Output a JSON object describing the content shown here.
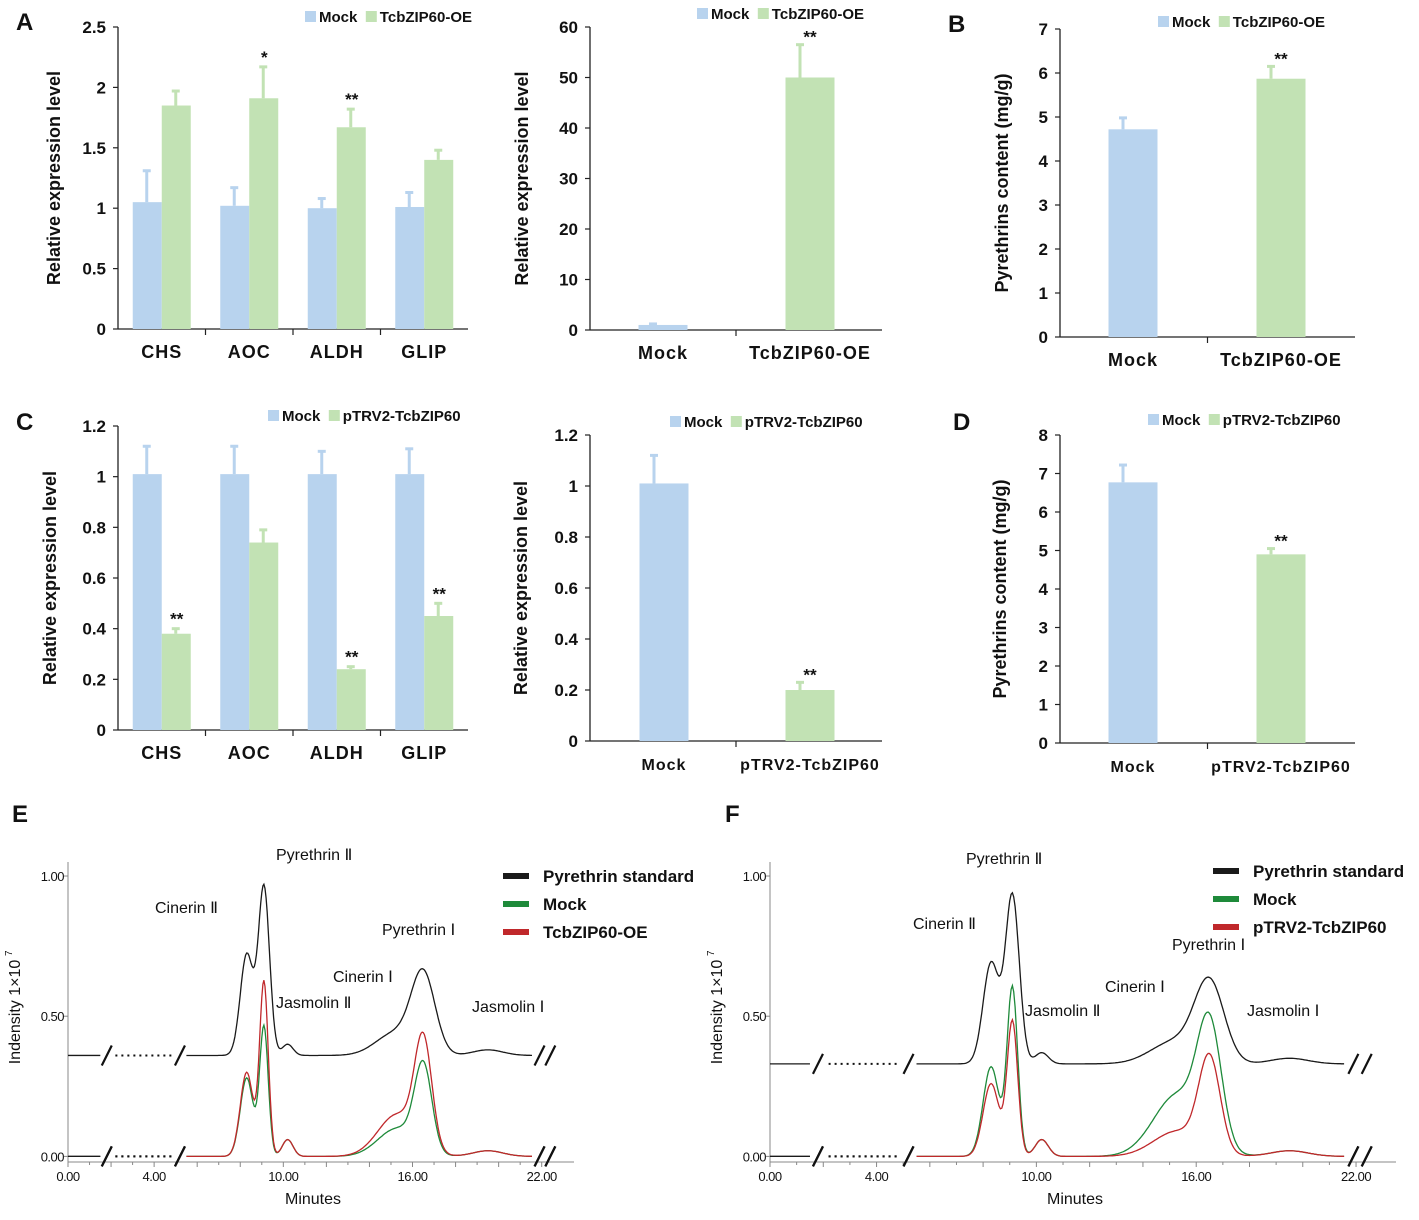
{
  "colors": {
    "mock": "#b8d3ee",
    "treatment": "#c2e2b4",
    "axis": "#222222",
    "standard": "#1a1a1a",
    "mock_trace": "#1e8a3a",
    "treatment_trace": "#c0282b"
  },
  "chart_data": [
    {
      "id": "A1",
      "panel": "A",
      "type": "bar",
      "categories": [
        "CHS",
        "AOC",
        "ALDH",
        "GLIP"
      ],
      "series": [
        {
          "name": "Mock",
          "values": [
            1.05,
            1.02,
            1.0,
            1.01
          ],
          "errors": [
            0.26,
            0.15,
            0.08,
            0.12
          ],
          "sig": [
            "",
            "",
            "",
            ""
          ]
        },
        {
          "name": "TcbZIP60-OE",
          "values": [
            1.85,
            1.91,
            1.67,
            1.4
          ],
          "errors": [
            0.12,
            0.26,
            0.15,
            0.08
          ],
          "sig": [
            "",
            "*",
            "**",
            ""
          ]
        }
      ],
      "ylabel": "Relative expression level",
      "ylim": [
        0,
        2.5
      ],
      "yticks": [
        "0",
        "0.5",
        "1",
        "1.5",
        "2",
        "2.5"
      ],
      "legend": [
        "Mock",
        "TcbZIP60-OE"
      ]
    },
    {
      "id": "A2",
      "panel": "",
      "type": "bar",
      "categories": [
        "Mock",
        "TcbZIP60-OE"
      ],
      "series": [
        {
          "name": "Mock",
          "values": [
            1.0,
            null
          ],
          "errors": [
            0.2,
            0
          ],
          "sig": [
            "",
            ""
          ]
        },
        {
          "name": "TcbZIP60-OE",
          "values": [
            null,
            50.0
          ],
          "errors": [
            0,
            6.5
          ],
          "sig": [
            "",
            "**"
          ]
        }
      ],
      "ylabel": "Relative expression level",
      "ylim": [
        0,
        60
      ],
      "yticks": [
        "0",
        "10",
        "20",
        "30",
        "40",
        "50",
        "60"
      ],
      "legend": [
        "Mock",
        "TcbZIP60-OE"
      ]
    },
    {
      "id": "B",
      "panel": "B",
      "type": "bar",
      "categories": [
        "Mock",
        "TcbZIP60-OE"
      ],
      "series": [
        {
          "name": "Mock",
          "values": [
            4.72,
            null
          ],
          "errors": [
            0.26,
            0
          ],
          "sig": [
            "",
            ""
          ]
        },
        {
          "name": "TcbZIP60-OE",
          "values": [
            null,
            5.87
          ],
          "errors": [
            0,
            0.28
          ],
          "sig": [
            "",
            "**"
          ]
        }
      ],
      "ylabel": "Pyrethrins content (mg/g)",
      "ylim": [
        0,
        7
      ],
      "yticks": [
        "0",
        "1",
        "2",
        "3",
        "4",
        "5",
        "6",
        "7"
      ],
      "legend": [
        "Mock",
        "TcbZIP60-OE"
      ]
    },
    {
      "id": "C1",
      "panel": "C",
      "type": "bar",
      "categories": [
        "CHS",
        "AOC",
        "ALDH",
        "GLIP"
      ],
      "series": [
        {
          "name": "Mock",
          "values": [
            1.01,
            1.01,
            1.01,
            1.01
          ],
          "errors": [
            0.11,
            0.11,
            0.09,
            0.1
          ],
          "sig": [
            "",
            "",
            "",
            ""
          ]
        },
        {
          "name": "pTRV2-TcbZIP60",
          "values": [
            0.38,
            0.74,
            0.24,
            0.45
          ],
          "errors": [
            0.02,
            0.05,
            0.01,
            0.05
          ],
          "sig": [
            "**",
            "",
            "**",
            "**"
          ]
        }
      ],
      "ylabel": "Relative expression level",
      "ylim": [
        0,
        1.2
      ],
      "yticks": [
        "0",
        "0.2",
        "0.4",
        "0.6",
        "0.8",
        "1",
        "1.2"
      ],
      "legend": [
        "Mock",
        "pTRV2-TcbZIP60"
      ]
    },
    {
      "id": "C2",
      "panel": "",
      "type": "bar",
      "categories": [
        "Mock",
        "pTRV2-TcbZIP60"
      ],
      "series": [
        {
          "name": "Mock",
          "values": [
            1.01,
            null
          ],
          "errors": [
            0.11,
            0
          ],
          "sig": [
            "",
            ""
          ]
        },
        {
          "name": "pTRV2-TcbZIP60",
          "values": [
            null,
            0.2
          ],
          "errors": [
            0,
            0.03
          ],
          "sig": [
            "",
            "**"
          ]
        }
      ],
      "ylabel": "Relative expression level",
      "ylim": [
        0,
        1.2
      ],
      "yticks": [
        "0",
        "0.2",
        "0.4",
        "0.6",
        "0.8",
        "1",
        "1.2"
      ],
      "legend": [
        "Mock",
        "pTRV2-TcbZIP60"
      ]
    },
    {
      "id": "D",
      "panel": "D",
      "type": "bar",
      "categories": [
        "Mock",
        "pTRV2-TcbZIP60"
      ],
      "series": [
        {
          "name": "Mock",
          "values": [
            6.77,
            null
          ],
          "errors": [
            0.45,
            0
          ],
          "sig": [
            "",
            ""
          ]
        },
        {
          "name": "pTRV2-TcbZIP60",
          "values": [
            null,
            4.9
          ],
          "errors": [
            0,
            0.15
          ],
          "sig": [
            "",
            "**"
          ]
        }
      ],
      "ylabel": "Pyrethrins content (mg/g)",
      "ylim": [
        0,
        8
      ],
      "yticks": [
        "0",
        "1",
        "2",
        "3",
        "4",
        "5",
        "6",
        "7",
        "8"
      ],
      "legend": [
        "Mock",
        "pTRV2-TcbZIP60"
      ]
    },
    {
      "id": "E",
      "panel": "E",
      "type": "line",
      "xlabel": "Minutes",
      "ylabel": "Indensity 1×10",
      "ylabel_exp": "7",
      "xlim": [
        0,
        23.5
      ],
      "ylim": [
        -0.02,
        1.05
      ],
      "xticks": [
        "0.00",
        "4.00",
        "10.00",
        "16.00",
        "22.00"
      ],
      "yticks": [
        "0.00",
        "0.50",
        "1.00"
      ],
      "standard_offset": 0.36,
      "legend": [
        "Pyrethrin standard",
        "Mock",
        "TcbZIP60-OE"
      ],
      "series": [
        {
          "name": "Pyrethrin standard",
          "baseline": 0.0,
          "peaks": [
            [
              8.3,
              0.3,
              0.36
            ],
            [
              9.1,
              0.26,
              0.6
            ],
            [
              10.2,
              0.25,
              0.04
            ],
            [
              15.2,
              0.9,
              0.08
            ],
            [
              16.5,
              0.55,
              0.28
            ],
            [
              19.5,
              0.7,
              0.02
            ]
          ]
        },
        {
          "name": "Mock",
          "baseline": 0.0,
          "peaks": [
            [
              8.3,
              0.3,
              0.28
            ],
            [
              9.1,
              0.2,
              0.46
            ],
            [
              10.2,
              0.25,
              0.06
            ],
            [
              15.3,
              0.9,
              0.1
            ],
            [
              16.5,
              0.4,
              0.3
            ],
            [
              19.5,
              0.7,
              0.02
            ]
          ]
        },
        {
          "name": "TcbZIP60-OE",
          "baseline": 0.0,
          "peaks": [
            [
              8.3,
              0.3,
              0.3
            ],
            [
              9.1,
              0.2,
              0.62
            ],
            [
              10.2,
              0.25,
              0.06
            ],
            [
              15.3,
              0.9,
              0.15
            ],
            [
              16.5,
              0.4,
              0.38
            ],
            [
              19.5,
              0.7,
              0.02
            ]
          ]
        }
      ],
      "annotations": [
        "Cinerin Ⅱ",
        "Pyrethrin Ⅱ",
        "Jasmolin Ⅱ",
        "Cinerin Ⅰ",
        "Pyrethrin Ⅰ",
        "Jasmolin Ⅰ"
      ]
    },
    {
      "id": "F",
      "panel": "F",
      "type": "line",
      "xlabel": "Minutes",
      "ylabel": "Indensity 1×10",
      "ylabel_exp": "7",
      "xlim": [
        0,
        23.5
      ],
      "ylim": [
        -0.02,
        1.05
      ],
      "xticks": [
        "0.00",
        "4.00",
        "10.00",
        "16.00",
        "22.00"
      ],
      "yticks": [
        "0.00",
        "0.50",
        "1.00"
      ],
      "standard_offset": 0.33,
      "legend": [
        "Pyrethrin standard",
        "Mock",
        "pTRV2-TcbZIP60"
      ],
      "series": [
        {
          "name": "Pyrethrin standard",
          "baseline": 0.0,
          "peaks": [
            [
              8.3,
              0.3,
              0.36
            ],
            [
              9.1,
              0.26,
              0.6
            ],
            [
              10.2,
              0.25,
              0.04
            ],
            [
              15.2,
              0.9,
              0.08
            ],
            [
              16.5,
              0.55,
              0.28
            ],
            [
              19.5,
              0.7,
              0.02
            ]
          ]
        },
        {
          "name": "Mock",
          "baseline": 0.0,
          "peaks": [
            [
              8.3,
              0.3,
              0.32
            ],
            [
              9.1,
              0.2,
              0.6
            ],
            [
              10.2,
              0.25,
              0.06
            ],
            [
              15.3,
              0.9,
              0.22
            ],
            [
              16.5,
              0.45,
              0.42
            ],
            [
              19.5,
              0.7,
              0.02
            ]
          ]
        },
        {
          "name": "pTRV2-TcbZIP60",
          "baseline": 0.0,
          "peaks": [
            [
              8.3,
              0.3,
              0.26
            ],
            [
              9.1,
              0.2,
              0.48
            ],
            [
              10.2,
              0.25,
              0.06
            ],
            [
              15.3,
              0.9,
              0.09
            ],
            [
              16.5,
              0.4,
              0.33
            ],
            [
              19.5,
              0.7,
              0.02
            ]
          ]
        }
      ],
      "annotations": [
        "Cinerin Ⅱ",
        "Pyrethrin Ⅱ",
        "Jasmolin Ⅱ",
        "Cinerin Ⅰ",
        "Pyrethrin Ⅰ",
        "Jasmolin Ⅰ"
      ]
    }
  ]
}
